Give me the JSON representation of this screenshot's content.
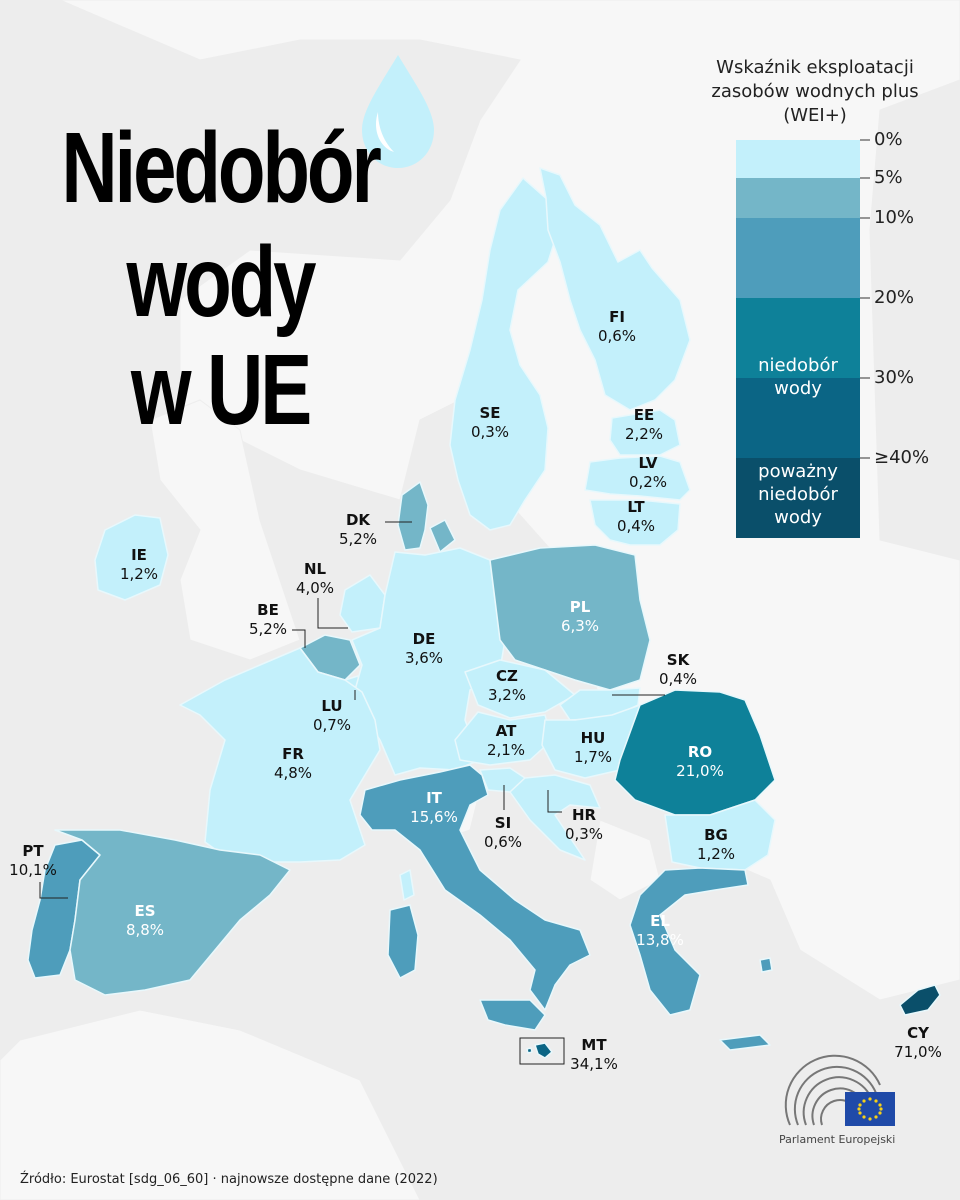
{
  "title": {
    "line1": "Niedobór",
    "line2": "wody",
    "line3": "w UE"
  },
  "legend": {
    "title_line1": "Wskaźnik eksploatacji",
    "title_line2": "zasobów wodnych plus",
    "title_line3": "(WEI+)",
    "ticks": [
      "0%",
      "5%",
      "10%",
      "20%",
      "30%",
      "≥40%"
    ],
    "band_water_shortage_line1": "niedobór",
    "band_water_shortage_line2": "wody",
    "band_severe_line1": "poważny",
    "band_severe_line2": "niedobór",
    "band_severe_line3": "wody",
    "colors": [
      "#c3f0fb",
      "#74b6c8",
      "#4e9dbb",
      "#0e8199",
      "#0b6585",
      "#0a4f6a"
    ]
  },
  "countries": [
    {
      "code": "FI",
      "value": "0,6%"
    },
    {
      "code": "SE",
      "value": "0,3%"
    },
    {
      "code": "EE",
      "value": "2,2%"
    },
    {
      "code": "LV",
      "value": "0,2%"
    },
    {
      "code": "LT",
      "value": "0,4%"
    },
    {
      "code": "DK",
      "value": "5,2%"
    },
    {
      "code": "IE",
      "value": "1,2%"
    },
    {
      "code": "NL",
      "value": "4,0%"
    },
    {
      "code": "BE",
      "value": "5,2%"
    },
    {
      "code": "PL",
      "value": "6,3%"
    },
    {
      "code": "DE",
      "value": "3,6%"
    },
    {
      "code": "CZ",
      "value": "3,2%"
    },
    {
      "code": "SK",
      "value": "0,4%"
    },
    {
      "code": "LU",
      "value": "0,7%"
    },
    {
      "code": "AT",
      "value": "2,1%"
    },
    {
      "code": "HU",
      "value": "1,7%"
    },
    {
      "code": "RO",
      "value": "21,0%"
    },
    {
      "code": "FR",
      "value": "4,8%"
    },
    {
      "code": "IT",
      "value": "15,6%"
    },
    {
      "code": "SI",
      "value": "0,6%"
    },
    {
      "code": "HR",
      "value": "0,3%"
    },
    {
      "code": "BG",
      "value": "1,2%"
    },
    {
      "code": "PT",
      "value": "10,1%"
    },
    {
      "code": "ES",
      "value": "8,8%"
    },
    {
      "code": "EL",
      "value": "13,8%"
    },
    {
      "code": "CY",
      "value": "71,0%"
    },
    {
      "code": "MT",
      "value": "34,1%"
    }
  ],
  "source": "Źródło: Eurostat [sdg_06_60] · najnowsze dostępne dane (2022)",
  "logo_text": "Parlament Europejski",
  "icons": [
    "water-drop-icon",
    "parliament-hemicycle-icon",
    "eu-flag-icon"
  ]
}
